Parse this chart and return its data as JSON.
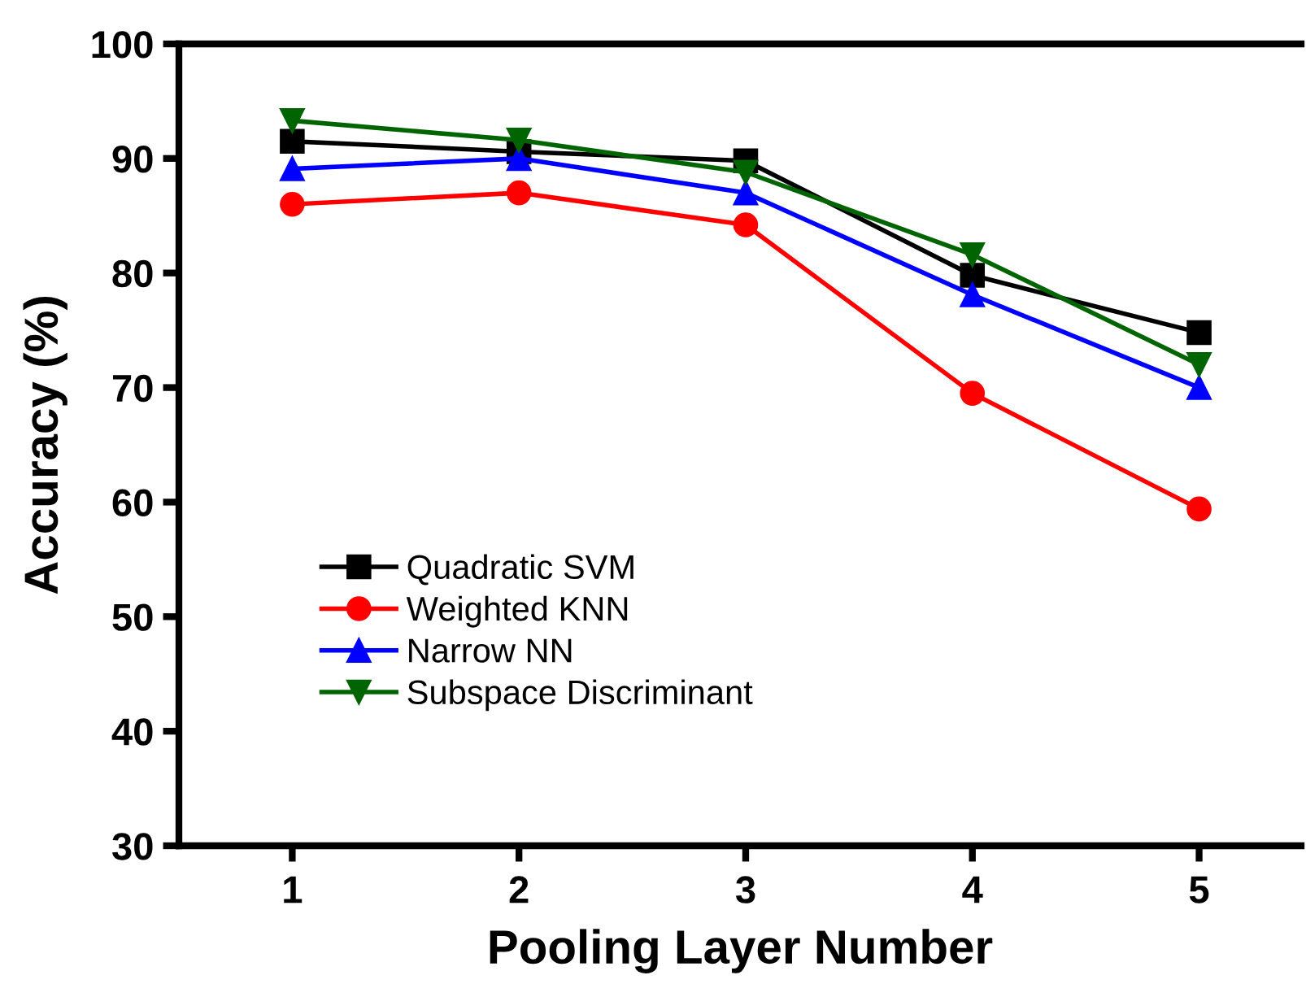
{
  "chart_data": {
    "type": "line",
    "xlabel": "Pooling Layer Number",
    "ylabel": "Accuracy (%)",
    "x": [
      1,
      2,
      3,
      4,
      5
    ],
    "series": [
      {
        "name": "Quadratic SVM",
        "color": "#000000",
        "marker": "square",
        "values": [
          91.5,
          90.6,
          89.8,
          79.8,
          74.8
        ]
      },
      {
        "name": "Weighted KNN",
        "color": "#ff0000",
        "marker": "circle",
        "values": [
          86.0,
          87.0,
          84.2,
          69.5,
          59.4
        ]
      },
      {
        "name": "Narrow NN",
        "color": "#0000ff",
        "marker": "triangle",
        "values": [
          89.1,
          90.0,
          87.0,
          78.1,
          70.0
        ]
      },
      {
        "name": "Subspace Discriminant",
        "color": "#006400",
        "marker": "triangle_down",
        "values": [
          93.3,
          91.6,
          88.8,
          81.6,
          72.0
        ]
      }
    ],
    "xlim": [
      0.5,
      5.45
    ],
    "xticks": [
      1,
      2,
      3,
      4,
      5
    ],
    "ylim": [
      30,
      100
    ],
    "yticks": [
      30,
      40,
      50,
      60,
      70,
      80,
      90,
      100
    ],
    "grid": false,
    "legend": "bottom left",
    "line_style": "solid"
  }
}
